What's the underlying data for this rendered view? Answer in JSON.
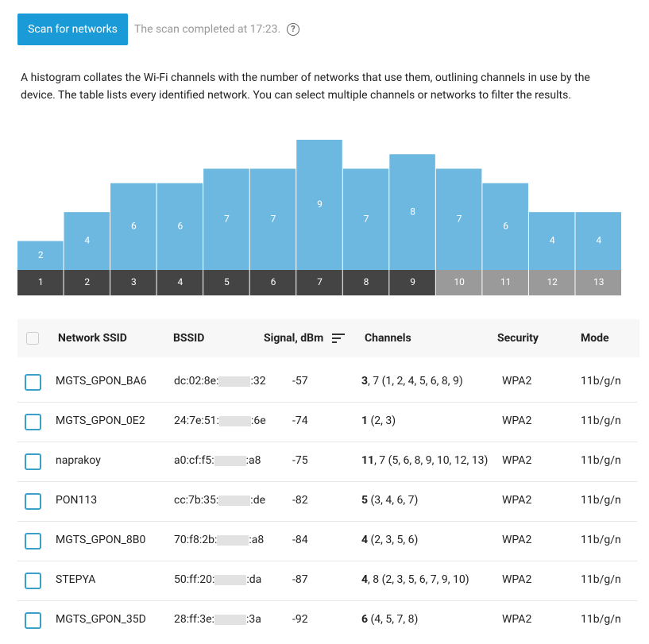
{
  "header": {
    "button": "Scan for networks",
    "status": "The scan completed at 17:23."
  },
  "description": "A histogram collates the Wi-Fi channels with the number of networks that use them, outlining channels in use by the device. The table lists every identified network. You can select multiple channels or networks to filter the results.",
  "histogram": {
    "channels": [
      "1",
      "2",
      "3",
      "4",
      "5",
      "6",
      "7",
      "8",
      "9",
      "10",
      "11",
      "12",
      "13"
    ],
    "counts": [
      2,
      4,
      6,
      6,
      7,
      7,
      9,
      7,
      8,
      7,
      6,
      4,
      4
    ],
    "max": 9,
    "bar_color": "#6cb8e0",
    "channel_colors": [
      "#444444",
      "#444444",
      "#444444",
      "#444444",
      "#444444",
      "#444444",
      "#444444",
      "#444444",
      "#444444",
      "#9a9a9a",
      "#9a9a9a",
      "#9a9a9a",
      "#9a9a9a"
    ]
  },
  "table": {
    "columns": [
      "Network SSID",
      "BSSID",
      "Signal, dBm",
      "Channels",
      "Security",
      "Mode"
    ],
    "rows": [
      {
        "ssid": "MGTS_GPON_BA6",
        "bssid_start": "dc:02:8e:",
        "bssid_end": ":32",
        "signal": "-57",
        "channel": "3",
        "channels_rest": ", 7 (1, 2, 4, 5, 6, 8, 9)",
        "security": "WPA2",
        "mode": "11b/g/n"
      },
      {
        "ssid": "MGTS_GPON_0E2",
        "bssid_start": "24:7e:51:",
        "bssid_end": ":6e",
        "signal": "-74",
        "channel": "1",
        "channels_rest": " (2, 3)",
        "security": "WPA2",
        "mode": "11b/g/n"
      },
      {
        "ssid": "naprakoy",
        "bssid_start": "a0:cf:f5:",
        "bssid_end": ":a8",
        "signal": "-75",
        "channel": "11",
        "channels_rest": ", 7 (5, 6, 8, 9, 10, 12, 13)",
        "security": "WPA2",
        "mode": "11b/g/n"
      },
      {
        "ssid": "PON113",
        "bssid_start": "cc:7b:35:",
        "bssid_end": ":de",
        "signal": "-82",
        "channel": "5",
        "channels_rest": " (3, 4, 6, 7)",
        "security": "WPA2",
        "mode": "11b/g/n"
      },
      {
        "ssid": "MGTS_GPON_8B0",
        "bssid_start": "70:f8:2b:",
        "bssid_end": ":a8",
        "signal": "-84",
        "channel": "4",
        "channels_rest": " (2, 3, 5, 6)",
        "security": "WPA2",
        "mode": "11b/g/n"
      },
      {
        "ssid": "STEPYA",
        "bssid_start": "50:ff:20:",
        "bssid_end": ":da",
        "signal": "-87",
        "channel": "4",
        "channels_rest": ", 8 (2, 3, 5, 6, 7, 9, 10)",
        "security": "WPA2",
        "mode": "11b/g/n"
      },
      {
        "ssid": "MGTS_GPON_35D",
        "bssid_start": "28:ff:3e:",
        "bssid_end": ":3a",
        "signal": "-92",
        "channel": "6",
        "channels_rest": " (4, 5, 7, 8)",
        "security": "WPA2",
        "mode": "11b/g/n"
      }
    ]
  }
}
